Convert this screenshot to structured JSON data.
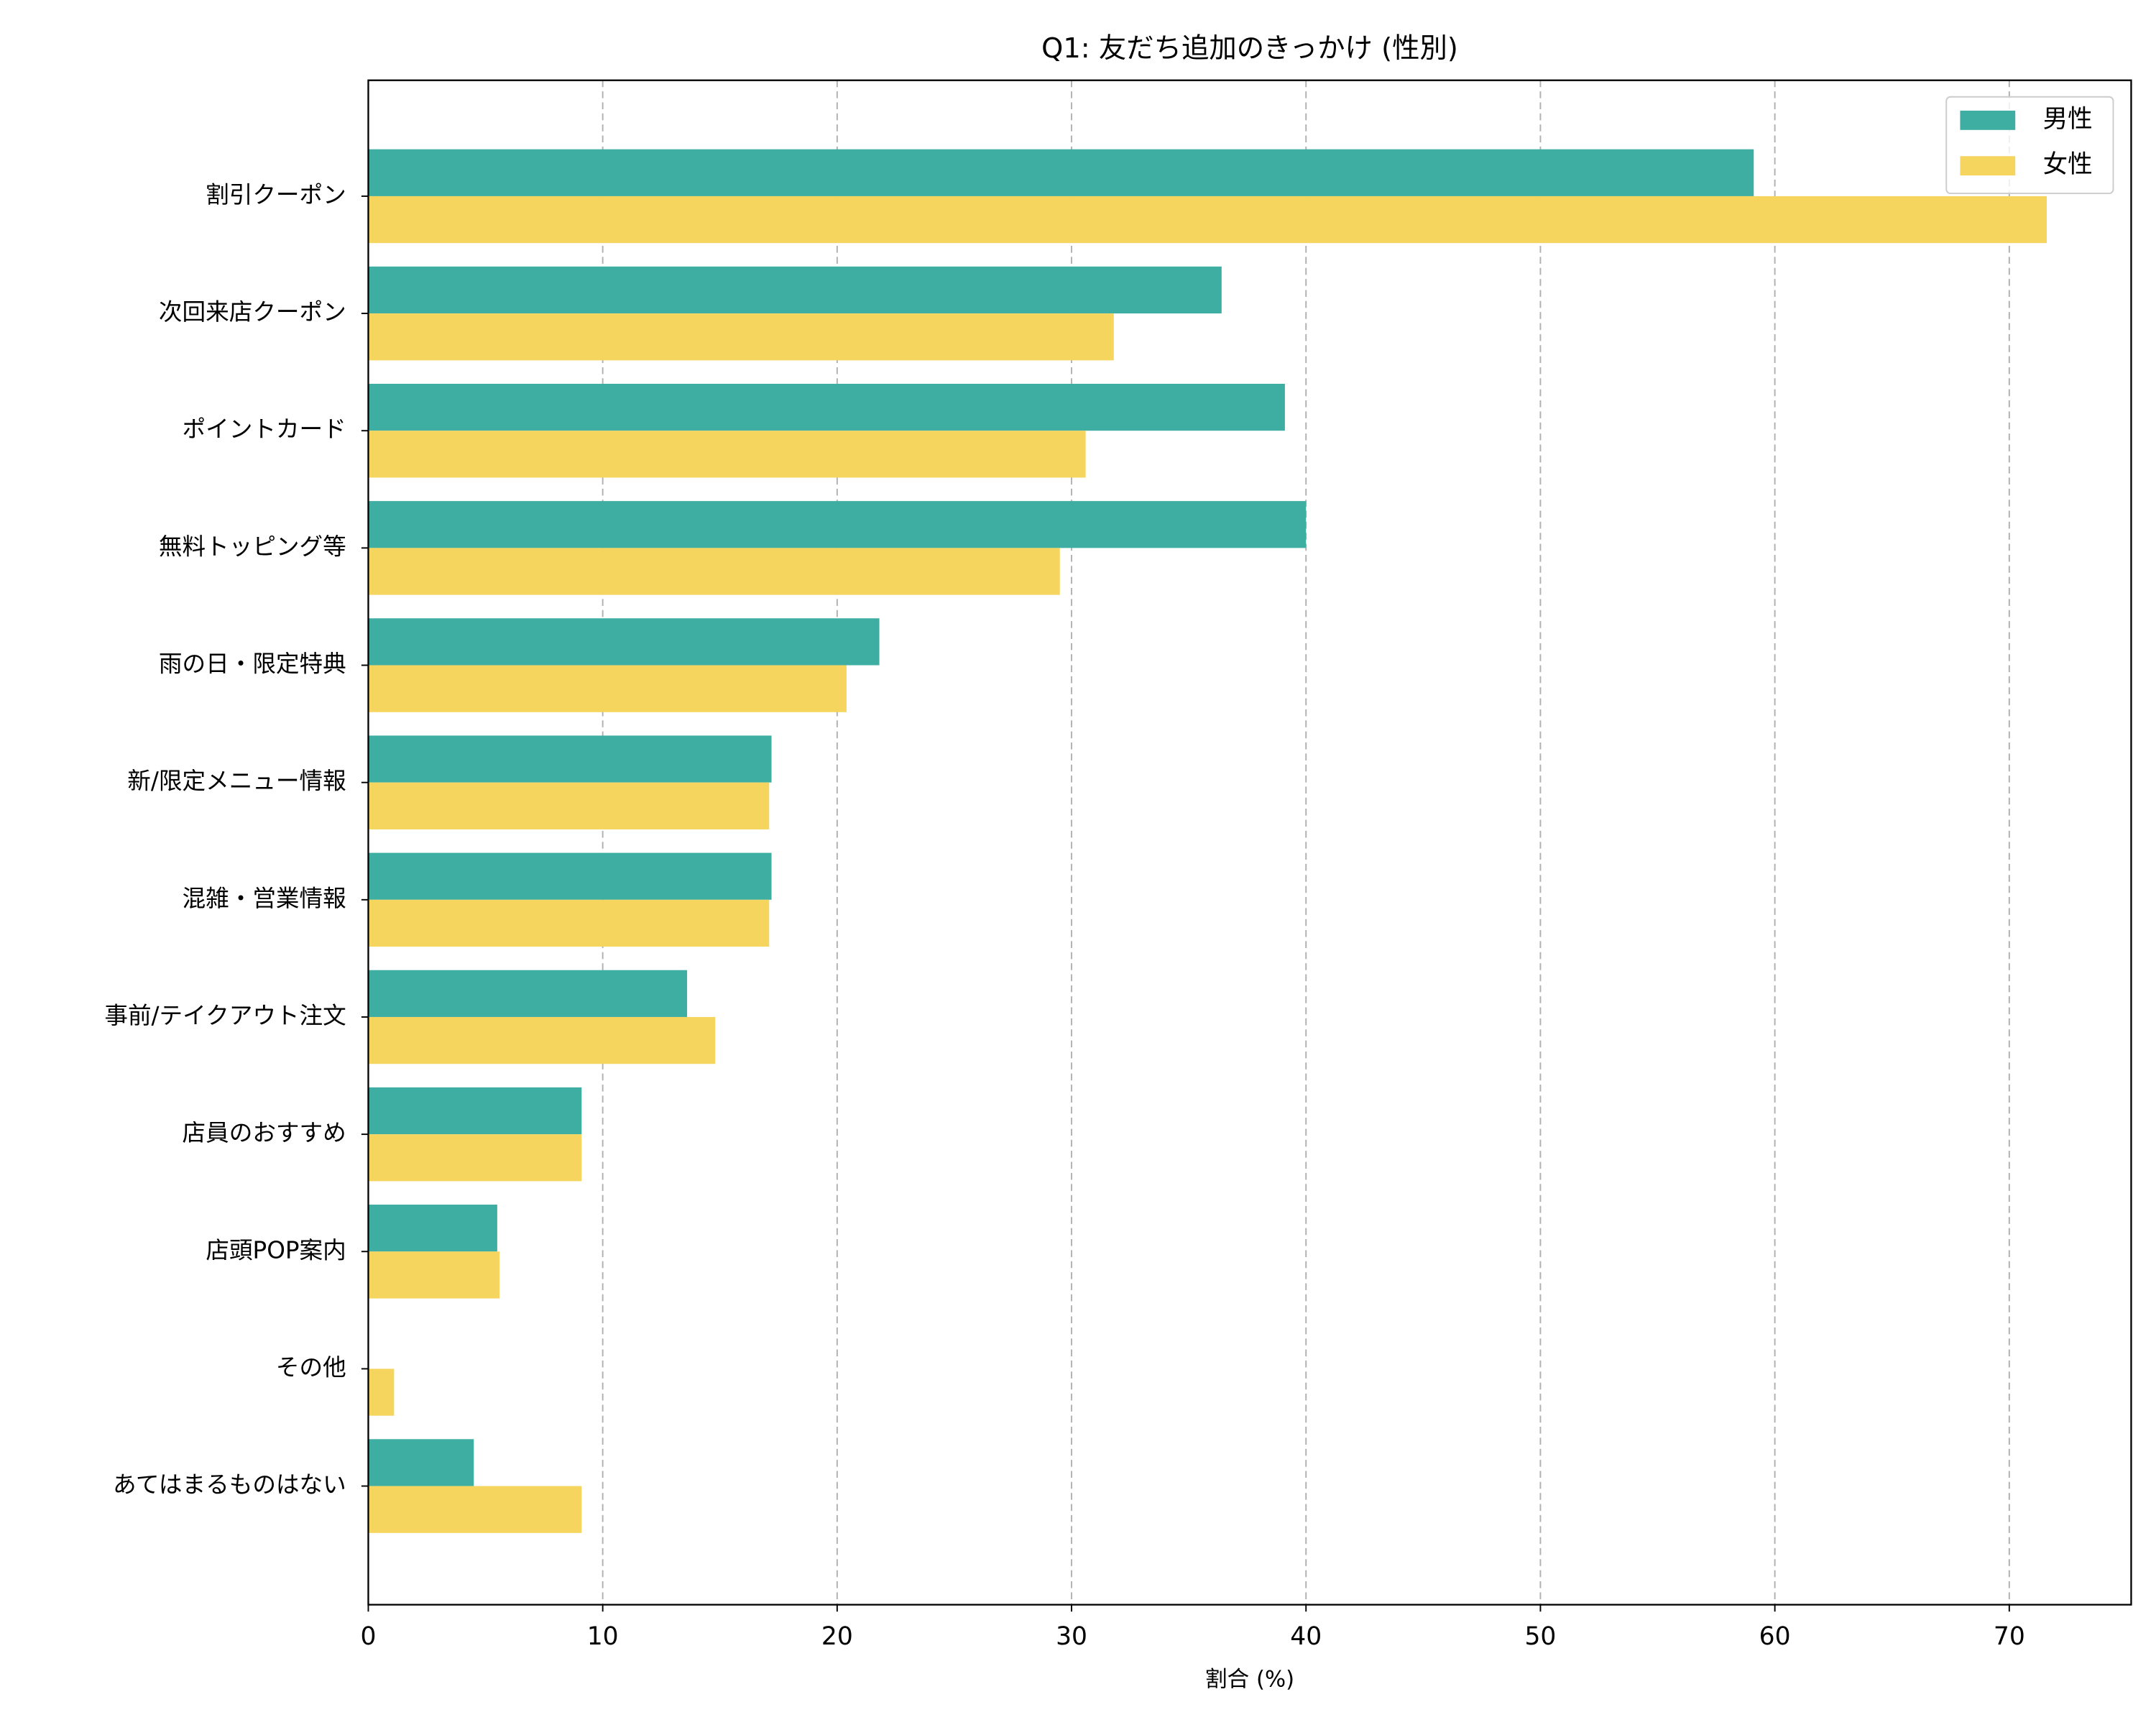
{
  "chart_data": {
    "type": "barh",
    "title": "Q1: 友だち追加のきっかけ (性別)",
    "x_label": "割合 (%)",
    "categories": [
      "割引クーポン",
      "次回来店クーポン",
      "ポイントカード",
      "無料トッピング等",
      "雨の日・限定特典",
      "新/限定メニュー情報",
      "混雑・営業情報",
      "事前/テイクアウト注文",
      "店員のおすすめ",
      "店頭POP案内",
      "その他",
      "あてはまるものはない"
    ],
    "series": [
      {
        "name": "男性",
        "color": "#3eaea3",
        "values": [
          59.1,
          36.4,
          39.1,
          40.0,
          21.8,
          17.2,
          17.2,
          13.6,
          9.1,
          5.5,
          0,
          4.5
        ]
      },
      {
        "name": "女性",
        "color": "#f5d55d",
        "values": [
          71.6,
          31.8,
          30.6,
          29.5,
          20.4,
          17.1,
          17.1,
          14.8,
          9.1,
          5.6,
          1.1,
          9.1
        ]
      }
    ],
    "xlim": [
      0,
      75.2
    ],
    "xticks": [
      0,
      10,
      20,
      30,
      40,
      50,
      60,
      70
    ],
    "grid": true,
    "legend": "upper right"
  }
}
